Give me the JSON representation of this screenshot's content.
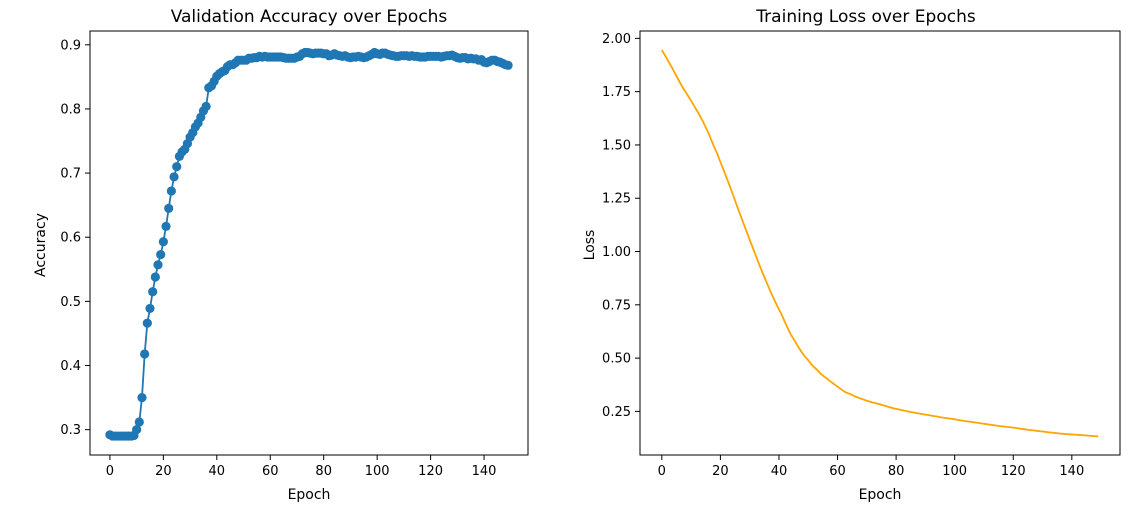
{
  "chart_data": [
    {
      "type": "line",
      "title": "Validation Accuracy over Epochs",
      "xlabel": "Epoch",
      "ylabel": "Accuracy",
      "xlim": [
        -7.45,
        156.45
      ],
      "ylim": [
        0.2605,
        0.9215
      ],
      "xticks": [
        0,
        20,
        40,
        60,
        80,
        100,
        120,
        140
      ],
      "yticks": [
        0.3,
        0.4,
        0.5,
        0.6,
        0.7,
        0.8,
        0.9
      ],
      "ytick_decimals": 1,
      "grid": false,
      "marker": "circle",
      "color": "#1f77b4",
      "series": [
        {
          "x": [
            0,
            1,
            2,
            3,
            4,
            5,
            6,
            7,
            8,
            9,
            10,
            11,
            12,
            13,
            14,
            15,
            16,
            17,
            18,
            19,
            20,
            21,
            22,
            23,
            24,
            25,
            26,
            27,
            28,
            29,
            30,
            31,
            32,
            33,
            34,
            35,
            36,
            37,
            38,
            39,
            40,
            41,
            42,
            43,
            44,
            45,
            46,
            47,
            48,
            49,
            50,
            51,
            52,
            53,
            54,
            55,
            56,
            57,
            58,
            59,
            60,
            61,
            62,
            63,
            64,
            65,
            66,
            67,
            68,
            69,
            70,
            71,
            72,
            73,
            74,
            75,
            76,
            77,
            78,
            79,
            80,
            81,
            82,
            83,
            84,
            85,
            86,
            87,
            88,
            89,
            90,
            91,
            92,
            93,
            94,
            95,
            96,
            97,
            98,
            99,
            100,
            101,
            102,
            103,
            104,
            105,
            106,
            107,
            108,
            109,
            110,
            111,
            112,
            113,
            114,
            115,
            116,
            117,
            118,
            119,
            120,
            121,
            122,
            123,
            124,
            125,
            126,
            127,
            128,
            129,
            130,
            131,
            132,
            133,
            134,
            135,
            136,
            137,
            138,
            139,
            140,
            141,
            142,
            143,
            144,
            145,
            146,
            147,
            148,
            149
          ],
          "values": [
            0.292,
            0.29,
            0.29,
            0.29,
            0.29,
            0.29,
            0.29,
            0.29,
            0.29,
            0.291,
            0.3,
            0.312,
            0.35,
            0.418,
            0.466,
            0.489,
            0.515,
            0.538,
            0.557,
            0.573,
            0.593,
            0.617,
            0.645,
            0.672,
            0.694,
            0.71,
            0.726,
            0.733,
            0.737,
            0.746,
            0.756,
            0.763,
            0.772,
            0.778,
            0.787,
            0.797,
            0.804,
            0.833,
            0.836,
            0.843,
            0.851,
            0.855,
            0.858,
            0.86,
            0.866,
            0.869,
            0.869,
            0.872,
            0.876,
            0.876,
            0.876,
            0.876,
            0.879,
            0.879,
            0.88,
            0.88,
            0.882,
            0.881,
            0.882,
            0.881,
            0.881,
            0.881,
            0.881,
            0.881,
            0.881,
            0.88,
            0.879,
            0.879,
            0.879,
            0.879,
            0.881,
            0.882,
            0.886,
            0.888,
            0.888,
            0.887,
            0.886,
            0.887,
            0.887,
            0.887,
            0.886,
            0.886,
            0.883,
            0.884,
            0.886,
            0.884,
            0.883,
            0.882,
            0.883,
            0.881,
            0.88,
            0.881,
            0.881,
            0.882,
            0.881,
            0.88,
            0.881,
            0.883,
            0.885,
            0.888,
            0.886,
            0.885,
            0.887,
            0.887,
            0.885,
            0.884,
            0.883,
            0.882,
            0.882,
            0.883,
            0.883,
            0.883,
            0.882,
            0.883,
            0.882,
            0.882,
            0.881,
            0.881,
            0.881,
            0.882,
            0.882,
            0.882,
            0.882,
            0.882,
            0.881,
            0.882,
            0.883,
            0.883,
            0.884,
            0.882,
            0.88,
            0.879,
            0.88,
            0.88,
            0.878,
            0.879,
            0.878,
            0.878,
            0.876,
            0.877,
            0.873,
            0.872,
            0.874,
            0.876,
            0.876,
            0.874,
            0.873,
            0.871,
            0.869,
            0.868
          ]
        }
      ]
    },
    {
      "type": "line",
      "title": "Training Loss over Epochs",
      "xlabel": "Epoch",
      "ylabel": "Loss",
      "xlim": [
        -7.45,
        156.45
      ],
      "ylim": [
        0.0455,
        2.0345
      ],
      "xticks": [
        0,
        20,
        40,
        60,
        80,
        100,
        120,
        140
      ],
      "yticks": [
        0.25,
        0.5,
        0.75,
        1.0,
        1.25,
        1.5,
        1.75,
        2.0
      ],
      "ytick_decimals": 2,
      "grid": false,
      "marker": "none",
      "color": "#ffa500",
      "series": [
        {
          "x": [
            0,
            1,
            2,
            3,
            4,
            5,
            6,
            7,
            8,
            9,
            10,
            11,
            12,
            13,
            14,
            15,
            16,
            17,
            18,
            19,
            20,
            21,
            22,
            23,
            24,
            25,
            26,
            27,
            28,
            29,
            30,
            31,
            32,
            33,
            34,
            35,
            36,
            37,
            38,
            39,
            40,
            41,
            42,
            43,
            44,
            45,
            46,
            47,
            48,
            49,
            50,
            51,
            52,
            53,
            54,
            55,
            56,
            57,
            58,
            59,
            60,
            61,
            62,
            63,
            64,
            65,
            66,
            67,
            68,
            69,
            70,
            71,
            72,
            73,
            74,
            75,
            76,
            77,
            78,
            79,
            80,
            81,
            82,
            83,
            84,
            85,
            86,
            87,
            88,
            89,
            90,
            91,
            92,
            93,
            94,
            95,
            96,
            97,
            98,
            99,
            100,
            101,
            102,
            103,
            104,
            105,
            106,
            107,
            108,
            109,
            110,
            111,
            112,
            113,
            114,
            115,
            116,
            117,
            118,
            119,
            120,
            121,
            122,
            123,
            124,
            125,
            126,
            127,
            128,
            129,
            130,
            131,
            132,
            133,
            134,
            135,
            136,
            137,
            138,
            139,
            140,
            141,
            142,
            143,
            144,
            145,
            146,
            147,
            148,
            149
          ],
          "values": [
            1.945,
            1.922,
            1.898,
            1.874,
            1.849,
            1.823,
            1.798,
            1.772,
            1.751,
            1.729,
            1.707,
            1.684,
            1.661,
            1.636,
            1.611,
            1.582,
            1.553,
            1.52,
            1.487,
            1.456,
            1.42,
            1.386,
            1.35,
            1.314,
            1.278,
            1.24,
            1.201,
            1.165,
            1.128,
            1.092,
            1.055,
            1.02,
            0.984,
            0.948,
            0.914,
            0.88,
            0.848,
            0.816,
            0.785,
            0.756,
            0.728,
            0.702,
            0.67,
            0.64,
            0.612,
            0.59,
            0.566,
            0.544,
            0.523,
            0.505,
            0.49,
            0.472,
            0.458,
            0.445,
            0.43,
            0.418,
            0.408,
            0.397,
            0.386,
            0.376,
            0.366,
            0.356,
            0.346,
            0.338,
            0.333,
            0.327,
            0.32,
            0.315,
            0.31,
            0.305,
            0.3,
            0.296,
            0.292,
            0.289,
            0.285,
            0.281,
            0.277,
            0.273,
            0.269,
            0.265,
            0.262,
            0.259,
            0.256,
            0.253,
            0.25,
            0.247,
            0.245,
            0.242,
            0.24,
            0.237,
            0.235,
            0.233,
            0.23,
            0.228,
            0.226,
            0.223,
            0.221,
            0.219,
            0.217,
            0.215,
            0.213,
            0.21,
            0.208,
            0.206,
            0.204,
            0.202,
            0.2,
            0.198,
            0.196,
            0.194,
            0.192,
            0.19,
            0.188,
            0.186,
            0.184,
            0.182,
            0.18,
            0.179,
            0.177,
            0.176,
            0.174,
            0.172,
            0.17,
            0.168,
            0.166,
            0.164,
            0.162,
            0.161,
            0.159,
            0.157,
            0.156,
            0.154,
            0.152,
            0.151,
            0.149,
            0.148,
            0.146,
            0.145,
            0.144,
            0.143,
            0.142,
            0.141,
            0.14,
            0.139,
            0.138,
            0.137,
            0.136,
            0.135,
            0.134,
            0.133
          ]
        }
      ]
    }
  ]
}
